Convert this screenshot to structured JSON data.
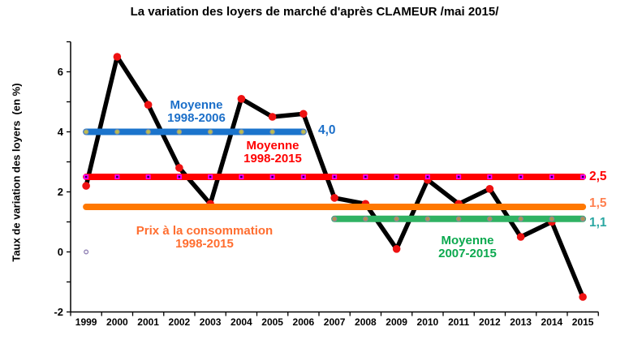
{
  "chart_data": {
    "type": "line",
    "title": "La variation des loyers de marché d'après CLAMEUR /mai 2015/",
    "ylabel": "Taux de variation des loyers  (en %)",
    "x_categories": [
      "1999",
      "2000",
      "2001",
      "2002",
      "2003",
      "2004",
      "2005",
      "2006",
      "2007",
      "2008",
      "2009",
      "2010",
      "2011",
      "2012",
      "2013",
      "2014",
      "2015"
    ],
    "y_axis": {
      "min": -2,
      "max": 7,
      "tick_step": 1,
      "labeled_ticks": [
        -2,
        0,
        2,
        4,
        6
      ]
    },
    "grid": false,
    "legend": "none",
    "series": [
      {
        "name": "Variation des loyers de marché",
        "type": "line",
        "color": "#000000",
        "marker": {
          "shape": "circle",
          "fill": "#EE1111"
        },
        "values": [
          2.2,
          6.5,
          4.9,
          2.8,
          1.6,
          5.1,
          4.5,
          4.6,
          1.8,
          1.6,
          0.1,
          2.4,
          1.6,
          2.1,
          0.5,
          1.0,
          -1.5
        ]
      },
      {
        "name": "Moyenne 1998-2006",
        "name_lines": [
          "Moyenne",
          "1998-2006"
        ],
        "type": "hline",
        "value": 4.0,
        "label": "4,0",
        "span": [
          "1999",
          "2006"
        ],
        "color": "#1B74CC",
        "text_color": "#1B6FC9",
        "label_color": "#1B6FC9",
        "marker": {
          "shape": "circle",
          "fill": "#BCBE4E",
          "stroke": "#8C9099"
        }
      },
      {
        "name": "Moyenne 1998-2015",
        "name_lines": [
          "Moyenne",
          "1998-2015"
        ],
        "type": "hline",
        "value": 2.5,
        "label": "2,5",
        "span": [
          "1999",
          "2015"
        ],
        "color": "#FF0000",
        "text_color": "#FF0000",
        "label_color": "#FF0000",
        "marker": {
          "shape": "square",
          "fill": "#FF00FF",
          "inner": "#2B0050"
        }
      },
      {
        "name": "Prix à la consommation 1998-2015",
        "name_lines": [
          "Prix à la consommation",
          "1998-2015"
        ],
        "type": "hline",
        "value": 1.5,
        "label": "1,5",
        "span": [
          "1999",
          "2015"
        ],
        "color": "#FF7800",
        "text_color": "#FF6E30",
        "label_color": "#FF8050",
        "marker": null
      },
      {
        "name": "Moyenne 2007-2015",
        "name_lines": [
          "Moyenne",
          "2007-2015"
        ],
        "type": "hline",
        "value": 1.1,
        "label": "1,1",
        "span": [
          "2007",
          "2015"
        ],
        "color": "#30B263",
        "text_color": "#0CA94F",
        "label_color": "#2AA7A2",
        "marker": {
          "shape": "circle",
          "fill": "#B0964F",
          "stroke": "#8F7FA5"
        }
      }
    ],
    "stray_point": {
      "x": "1999",
      "value": 0,
      "fill": "#F4F2F8",
      "stroke": "#8A7AB0"
    }
  }
}
